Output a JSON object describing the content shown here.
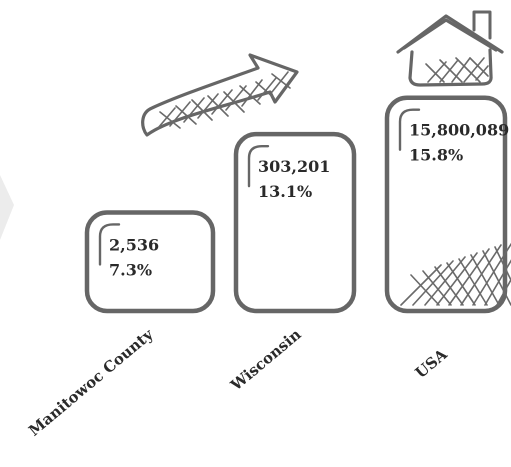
{
  "chart_data": {
    "type": "bar",
    "title": "",
    "xlabel": "",
    "ylabel": "",
    "categories": [
      "Manitowoc County",
      "Wisconsin",
      "USA"
    ],
    "series": [
      {
        "values": [
          2536,
          303201,
          15800089
        ]
      },
      {
        "values": [
          7.3,
          13.1,
          15.8
        ]
      }
    ],
    "value_labels": [
      "2,536",
      "303,201",
      "15,800,089"
    ],
    "percent_labels": [
      "7.3%",
      "13.1%",
      "15.8%"
    ],
    "bar_heights_relative_to": "percent",
    "ylim": [
      0,
      16
    ],
    "grid": false,
    "legend": "none",
    "colors": {
      "stroke": "#666666",
      "text": "#2a2a2a",
      "hatch": "#6a6a6a",
      "background": "#ffffff"
    },
    "decorations": [
      "upward-arrow-icon",
      "house-icon",
      "crosshatch"
    ]
  }
}
